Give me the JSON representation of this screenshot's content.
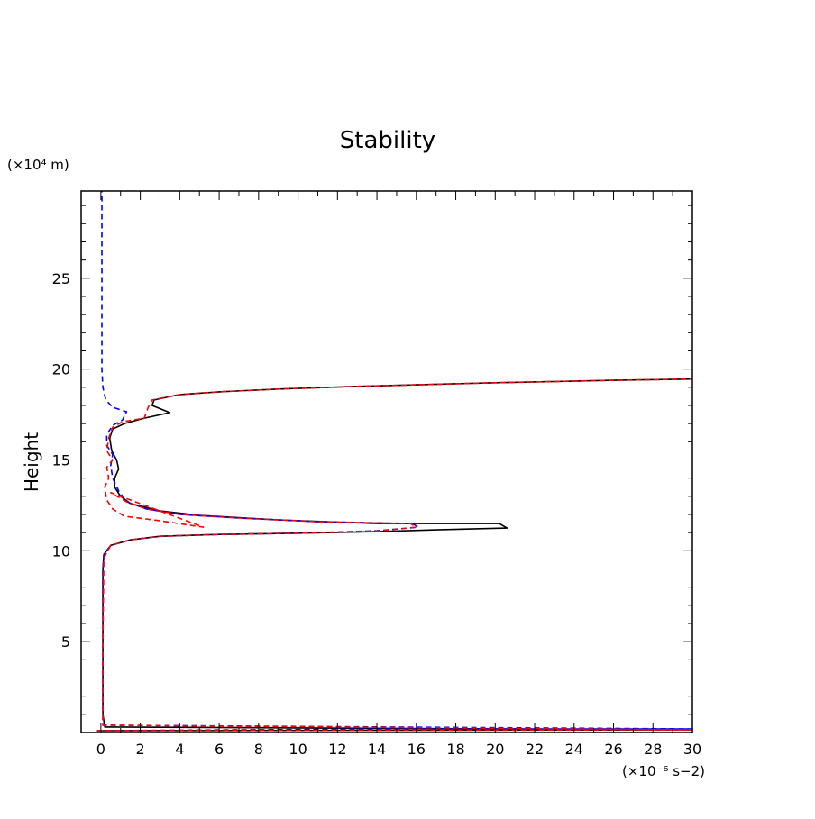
{
  "chart_data": {
    "type": "line",
    "title": "Stability",
    "ylabel": "Height",
    "xlabel": "",
    "x_unit_label": "(×10⁻⁶ s−2)",
    "y_unit_label": "(×10⁴ m)",
    "xlim": [
      -1,
      30
    ],
    "ylim": [
      0,
      29.8
    ],
    "x_ticks": [
      0,
      2,
      4,
      6,
      8,
      10,
      12,
      14,
      16,
      18,
      20,
      22,
      24,
      26,
      28,
      30
    ],
    "x_tick_labels": [
      "0",
      "2",
      "4",
      "6",
      "8",
      "10",
      "12",
      "14",
      "16",
      "18",
      "20",
      "22",
      "24",
      "26",
      "28",
      "30"
    ],
    "y_ticks": [
      5,
      10,
      15,
      20,
      25
    ],
    "y_tick_labels": [
      "5",
      "10",
      "15",
      "20",
      "25"
    ],
    "grid": false,
    "series": [
      {
        "color": "#000000",
        "dash": "solid",
        "points": [
          [
            -0.2,
            0.1
          ],
          [
            30,
            0.15
          ],
          [
            0.2,
            0.3
          ],
          [
            0.1,
            1.0
          ],
          [
            0.1,
            5.0
          ],
          [
            0.1,
            9.0
          ],
          [
            0.15,
            9.8
          ],
          [
            0.5,
            10.3
          ],
          [
            1.5,
            10.6
          ],
          [
            3.0,
            10.8
          ],
          [
            6.0,
            10.9
          ],
          [
            10.0,
            10.97
          ],
          [
            14.0,
            11.05
          ],
          [
            17.0,
            11.15
          ],
          [
            20.6,
            11.25
          ],
          [
            20.2,
            11.5
          ],
          [
            14.0,
            11.5
          ],
          [
            9.0,
            11.7
          ],
          [
            5.0,
            11.95
          ],
          [
            3.0,
            12.2
          ],
          [
            1.5,
            12.6
          ],
          [
            1.0,
            13.0
          ],
          [
            0.7,
            13.5
          ],
          [
            0.7,
            14.0
          ],
          [
            0.9,
            14.5
          ],
          [
            0.8,
            15.0
          ],
          [
            0.55,
            15.5
          ],
          [
            0.45,
            16.2
          ],
          [
            0.6,
            16.7
          ],
          [
            1.2,
            17.0
          ],
          [
            2.2,
            17.3
          ],
          [
            3.5,
            17.6
          ],
          [
            2.6,
            18.0
          ],
          [
            2.7,
            18.3
          ],
          [
            4.0,
            18.6
          ],
          [
            6.0,
            18.75
          ],
          [
            9.0,
            18.9
          ],
          [
            13.0,
            19.05
          ],
          [
            20.0,
            19.25
          ],
          [
            26.0,
            19.38
          ],
          [
            30,
            19.45
          ]
        ]
      },
      {
        "color": "#0000ff",
        "dash": "dashed",
        "points": [
          [
            -0.2,
            0.1
          ],
          [
            15.0,
            0.2
          ],
          [
            30,
            0.2
          ],
          [
            0.1,
            0.4
          ],
          [
            0.1,
            5.0
          ],
          [
            0.1,
            9.0
          ],
          [
            0.15,
            9.8
          ],
          [
            0.5,
            10.3
          ],
          [
            1.5,
            10.6
          ],
          [
            3.0,
            10.8
          ],
          [
            6.0,
            10.9
          ],
          [
            10.0,
            10.97
          ],
          [
            14.0,
            11.1
          ],
          [
            16.1,
            11.3
          ],
          [
            15.8,
            11.5
          ],
          [
            11.0,
            11.6
          ],
          [
            7.0,
            11.8
          ],
          [
            4.0,
            12.0
          ],
          [
            2.3,
            12.3
          ],
          [
            1.3,
            12.7
          ],
          [
            0.9,
            13.3
          ],
          [
            0.6,
            14.0
          ],
          [
            0.5,
            14.7
          ],
          [
            0.6,
            15.3
          ],
          [
            0.3,
            15.8
          ],
          [
            0.3,
            16.4
          ],
          [
            0.6,
            16.9
          ],
          [
            1.1,
            17.2
          ],
          [
            1.3,
            17.65
          ],
          [
            0.6,
            17.9
          ],
          [
            0.25,
            18.3
          ],
          [
            0.1,
            19.0
          ],
          [
            0.05,
            20.0
          ],
          [
            0.05,
            22.0
          ],
          [
            0.05,
            25.0
          ],
          [
            0.05,
            29.8
          ]
        ]
      },
      {
        "color": "#ff0000",
        "dash": "dashed",
        "points": [
          [
            -0.2,
            0.1
          ],
          [
            30,
            0.15
          ],
          [
            0.1,
            0.4
          ],
          [
            0.1,
            5.0
          ],
          [
            0.15,
            9.6
          ],
          [
            0.5,
            10.3
          ],
          [
            1.5,
            10.6
          ],
          [
            3.0,
            10.8
          ],
          [
            6.0,
            10.9
          ],
          [
            10.0,
            10.97
          ],
          [
            14.0,
            11.08
          ],
          [
            16.0,
            11.3
          ],
          [
            15.7,
            11.5
          ],
          [
            11.0,
            11.6
          ],
          [
            7.0,
            11.8
          ],
          [
            4.0,
            12.0
          ],
          [
            2.3,
            12.3
          ],
          [
            1.3,
            12.7
          ],
          [
            0.5,
            13.2
          ],
          [
            5.2,
            11.3
          ],
          [
            3.0,
            11.65
          ],
          [
            1.2,
            11.9
          ],
          [
            0.6,
            12.3
          ],
          [
            0.3,
            12.8
          ],
          [
            0.2,
            13.5
          ],
          [
            0.4,
            14.0
          ],
          [
            0.3,
            14.6
          ],
          [
            0.6,
            15.0
          ],
          [
            0.3,
            15.5
          ],
          [
            0.4,
            16.2
          ],
          [
            0.6,
            16.8
          ],
          [
            1.1,
            17.1
          ],
          [
            2.2,
            17.3
          ],
          [
            2.4,
            17.9
          ],
          [
            2.6,
            18.3
          ],
          [
            4.0,
            18.6
          ],
          [
            6.0,
            18.75
          ],
          [
            9.0,
            18.9
          ],
          [
            13.0,
            19.05
          ],
          [
            20.0,
            19.25
          ],
          [
            26.0,
            19.38
          ],
          [
            30,
            19.45
          ]
        ]
      }
    ]
  }
}
